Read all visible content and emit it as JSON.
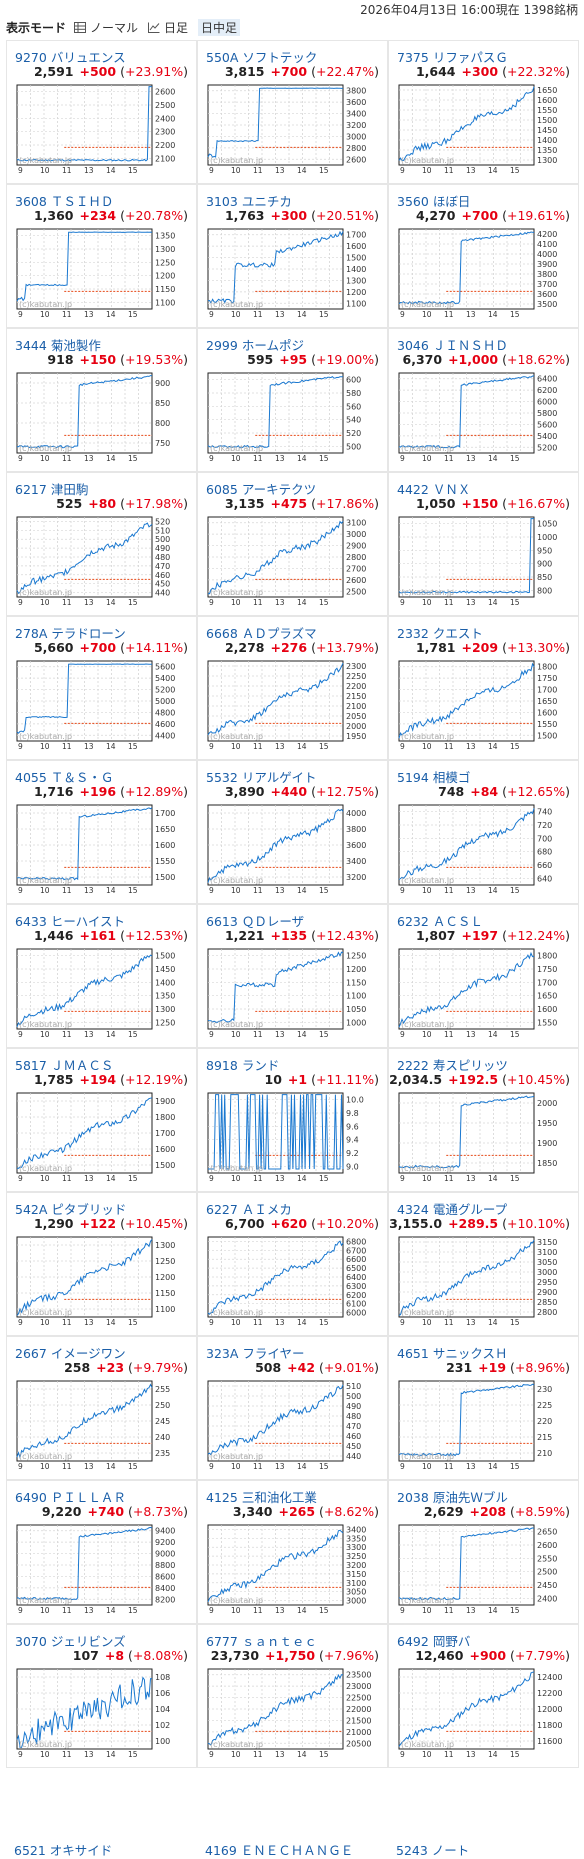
{
  "header": {
    "mode_label": "表示モード",
    "modes": [
      {
        "label": "ノーマル",
        "icon": "table-icon",
        "active": false
      },
      {
        "label": "日足",
        "icon": "chart-icon",
        "active": false
      },
      {
        "label": "日中足",
        "icon": "",
        "active": true
      }
    ],
    "timestamp": "2026年04月13日  16:00現在  1398銘柄"
  },
  "watermark": "(c)kabutan.jp",
  "xlabels": [
    "9",
    "10",
    "11",
    "13",
    "14",
    "15"
  ],
  "stocks": [
    {
      "code": "9270",
      "name": "バリュエンス",
      "price": "2,591",
      "change": "+500",
      "pct": "+23.91%",
      "yticks": [
        "2600",
        "2500",
        "2400",
        "2300",
        "2200",
        "2100"
      ],
      "shape": "jump-end"
    },
    {
      "code": "550A",
      "name": "ソフトテック",
      "price": "3,815",
      "change": "+700",
      "pct": "+22.47%",
      "yticks": [
        "3800",
        "3600",
        "3400",
        "3200",
        "3000",
        "2800",
        "2600"
      ],
      "shape": "step-up"
    },
    {
      "code": "7375",
      "name": "リファパスＧ",
      "price": "1,644",
      "change": "+300",
      "pct": "+22.32%",
      "yticks": [
        "1650",
        "1600",
        "1550",
        "1500",
        "1450",
        "1400",
        "1350",
        "1300"
      ],
      "shape": "rise"
    },
    {
      "code": "3608",
      "name": "ＴＳＩＨＤ",
      "price": "1,360",
      "change": "+234",
      "pct": "+20.78%",
      "yticks": [
        "1350",
        "1300",
        "1250",
        "1200",
        "1150",
        "1100"
      ],
      "shape": "step-up"
    },
    {
      "code": "3103",
      "name": "ユニチカ",
      "price": "1,763",
      "change": "+300",
      "pct": "+20.51%",
      "yticks": [
        "1700",
        "1600",
        "1500",
        "1400",
        "1300",
        "1200",
        "1100"
      ],
      "shape": "step-rise"
    },
    {
      "code": "3560",
      "name": "ほぼ日",
      "price": "4,270",
      "change": "+700",
      "pct": "+19.61%",
      "yticks": [
        "4200",
        "4100",
        "4000",
        "3900",
        "3800",
        "3700",
        "3600",
        "3500"
      ],
      "shape": "jump-mid"
    },
    {
      "code": "3444",
      "name": "菊池製作",
      "price": "918",
      "change": "+150",
      "pct": "+19.53%",
      "yticks": [
        "900",
        "850",
        "800",
        "750"
      ],
      "shape": "jump-mid"
    },
    {
      "code": "2999",
      "name": "ホームポジ",
      "price": "595",
      "change": "+95",
      "pct": "+19.00%",
      "yticks": [
        "600",
        "580",
        "560",
        "540",
        "520",
        "500"
      ],
      "shape": "jump-mid"
    },
    {
      "code": "3046",
      "name": "ＪＩＮＳＨＤ",
      "price": "6,370",
      "change": "+1,000",
      "pct": "+18.62%",
      "yticks": [
        "6400",
        "6200",
        "6000",
        "5800",
        "5600",
        "5400",
        "5200"
      ],
      "shape": "jump-mid"
    },
    {
      "code": "6217",
      "name": "津田駒",
      "price": "525",
      "change": "+80",
      "pct": "+17.98%",
      "yticks": [
        "520",
        "510",
        "500",
        "490",
        "480",
        "470",
        "460",
        "450",
        "440"
      ],
      "shape": "rise"
    },
    {
      "code": "6085",
      "name": "アーキテクツ",
      "price": "3,135",
      "change": "+475",
      "pct": "+17.86%",
      "yticks": [
        "3100",
        "3000",
        "2900",
        "2800",
        "2700",
        "2600",
        "2500"
      ],
      "shape": "rise"
    },
    {
      "code": "4422",
      "name": "ＶＮＸ",
      "price": "1,050",
      "change": "+150",
      "pct": "+16.67%",
      "yticks": [
        "1050",
        "1000",
        "950",
        "900",
        "850",
        "800"
      ],
      "shape": "jump-end"
    },
    {
      "code": "278A",
      "name": "テラドローン",
      "price": "5,660",
      "change": "+700",
      "pct": "+14.11%",
      "yticks": [
        "5600",
        "5400",
        "5200",
        "5000",
        "4800",
        "4600",
        "4400"
      ],
      "shape": "step-up"
    },
    {
      "code": "6668",
      "name": "ＡＤプラズマ",
      "price": "2,278",
      "change": "+276",
      "pct": "+13.79%",
      "yticks": [
        "2300",
        "2250",
        "2200",
        "2150",
        "2100",
        "2050",
        "2000",
        "1950"
      ],
      "shape": "rise"
    },
    {
      "code": "2332",
      "name": "クエスト",
      "price": "1,781",
      "change": "+209",
      "pct": "+13.30%",
      "yticks": [
        "1800",
        "1750",
        "1700",
        "1650",
        "1600",
        "1550",
        "1500"
      ],
      "shape": "rise"
    },
    {
      "code": "4055",
      "name": "Ｔ＆Ｓ・Ｇ",
      "price": "1,716",
      "change": "+196",
      "pct": "+12.89%",
      "yticks": [
        "1700",
        "1650",
        "1600",
        "1550",
        "1500"
      ],
      "shape": "jump-mid"
    },
    {
      "code": "5532",
      "name": "リアルゲイト",
      "price": "3,890",
      "change": "+440",
      "pct": "+12.75%",
      "yticks": [
        "4000",
        "3800",
        "3600",
        "3400",
        "3200"
      ],
      "shape": "rise"
    },
    {
      "code": "5194",
      "name": "相模ゴ",
      "price": "748",
      "change": "+84",
      "pct": "+12.65%",
      "yticks": [
        "740",
        "720",
        "700",
        "680",
        "660",
        "640"
      ],
      "shape": "rise"
    },
    {
      "code": "6433",
      "name": "ヒーハイスト",
      "price": "1,446",
      "change": "+161",
      "pct": "+12.53%",
      "yticks": [
        "1500",
        "1450",
        "1400",
        "1350",
        "1300",
        "1250"
      ],
      "shape": "rise"
    },
    {
      "code": "6613",
      "name": "ＱＤレーザ",
      "price": "1,221",
      "change": "+135",
      "pct": "+12.43%",
      "yticks": [
        "1250",
        "1200",
        "1150",
        "1100",
        "1050",
        "1000"
      ],
      "shape": "step-rise"
    },
    {
      "code": "6232",
      "name": "ＡＣＳＬ",
      "price": "1,807",
      "change": "+197",
      "pct": "+12.24%",
      "yticks": [
        "1800",
        "1750",
        "1700",
        "1650",
        "1600",
        "1550"
      ],
      "shape": "rise"
    },
    {
      "code": "5817",
      "name": "ＪＭＡＣＳ",
      "price": "1,785",
      "change": "+194",
      "pct": "+12.19%",
      "yticks": [
        "1900",
        "1800",
        "1700",
        "1600",
        "1500"
      ],
      "shape": "rise"
    },
    {
      "code": "8918",
      "name": "ランド",
      "price": "10",
      "change": "+1",
      "pct": "+11.11%",
      "yticks": [
        "10.0",
        "9.8",
        "9.6",
        "9.4",
        "9.2",
        "9.0"
      ],
      "shape": "flicker"
    },
    {
      "code": "2222",
      "name": "寿スピリッツ",
      "price": "2,034.5",
      "change": "+192.5",
      "pct": "+10.45%",
      "yticks": [
        "2000",
        "1950",
        "1900",
        "1850"
      ],
      "shape": "jump-mid"
    },
    {
      "code": "542A",
      "name": "ピタブリッド",
      "price": "1,290",
      "change": "+122",
      "pct": "+10.45%",
      "yticks": [
        "1300",
        "1250",
        "1200",
        "1150",
        "1100"
      ],
      "shape": "rise"
    },
    {
      "code": "6227",
      "name": "ＡＩメカ",
      "price": "6,700",
      "change": "+620",
      "pct": "+10.20%",
      "yticks": [
        "6800",
        "6700",
        "6600",
        "6500",
        "6400",
        "6300",
        "6200",
        "6100",
        "6000"
      ],
      "shape": "rise"
    },
    {
      "code": "4324",
      "name": "電通グループ",
      "price": "3,155.0",
      "change": "+289.5",
      "pct": "+10.10%",
      "yticks": [
        "3150",
        "3100",
        "3050",
        "3000",
        "2950",
        "2900",
        "2850",
        "2800"
      ],
      "shape": "rise"
    },
    {
      "code": "2667",
      "name": "イメージワン",
      "price": "258",
      "change": "+23",
      "pct": "+9.79%",
      "yticks": [
        "255",
        "250",
        "245",
        "240",
        "235"
      ],
      "shape": "rise"
    },
    {
      "code": "323A",
      "name": "フライヤー",
      "price": "508",
      "change": "+42",
      "pct": "+9.01%",
      "yticks": [
        "510",
        "500",
        "490",
        "480",
        "470",
        "460",
        "450",
        "440"
      ],
      "shape": "rise"
    },
    {
      "code": "4651",
      "name": "サニックスＨ",
      "price": "231",
      "change": "+19",
      "pct": "+8.96%",
      "yticks": [
        "230",
        "225",
        "220",
        "215",
        "210"
      ],
      "shape": "jump-mid"
    },
    {
      "code": "6490",
      "name": "ＰＩＬＬＡＲ",
      "price": "9,220",
      "change": "+740",
      "pct": "+8.73%",
      "yticks": [
        "9400",
        "9200",
        "9000",
        "8800",
        "8600",
        "8400",
        "8200"
      ],
      "shape": "jump-mid"
    },
    {
      "code": "4125",
      "name": "三和油化工業",
      "price": "3,340",
      "change": "+265",
      "pct": "+8.62%",
      "yticks": [
        "3400",
        "3350",
        "3300",
        "3250",
        "3200",
        "3150",
        "3100",
        "3050",
        "3000"
      ],
      "shape": "rise"
    },
    {
      "code": "2038",
      "name": "原油先Ｗブル",
      "price": "2,629",
      "change": "+208",
      "pct": "+8.59%",
      "yticks": [
        "2650",
        "2600",
        "2550",
        "2500",
        "2450",
        "2400"
      ],
      "shape": "jump-mid"
    },
    {
      "code": "3070",
      "name": "ジェリビンズ",
      "price": "107",
      "change": "+8",
      "pct": "+8.08%",
      "yticks": [
        "108",
        "106",
        "104",
        "102",
        "100"
      ],
      "shape": "flicker-rise"
    },
    {
      "code": "6777",
      "name": "ｓａｎｔｅｃ",
      "price": "23,730",
      "change": "+1,750",
      "pct": "+7.96%",
      "yticks": [
        "23500",
        "23000",
        "22500",
        "22000",
        "21500",
        "21000",
        "20500"
      ],
      "shape": "rise"
    },
    {
      "code": "6492",
      "name": "岡野バ",
      "price": "12,460",
      "change": "+900",
      "pct": "+7.79%",
      "yticks": [
        "12400",
        "12200",
        "12000",
        "11800",
        "11600"
      ],
      "shape": "rise"
    }
  ],
  "partial": [
    {
      "code": "6521",
      "name": "オキサイド"
    },
    {
      "code": "4169",
      "name": "ＥＮＥＣＨＡＮＧＥ"
    },
    {
      "code": "5243",
      "name": "ノート"
    }
  ]
}
